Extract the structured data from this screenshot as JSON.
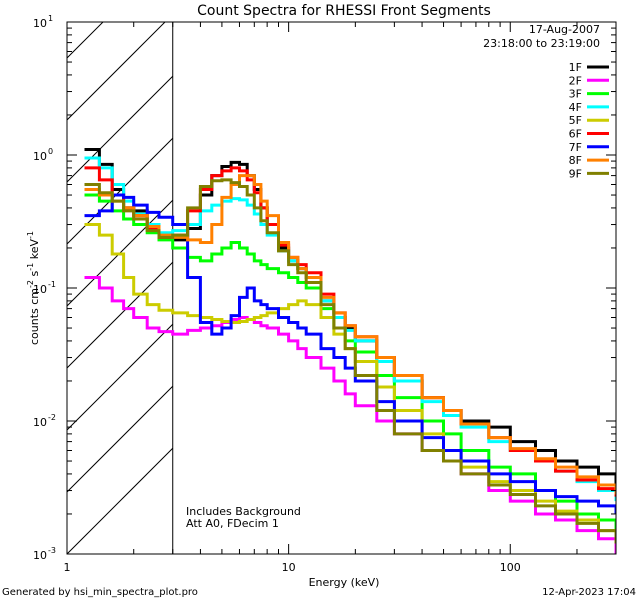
{
  "chart_data": {
    "type": "line",
    "title": "Count Spectra for RHESSI Front Segments",
    "xlabel": "Energy (keV)",
    "ylabel": "counts cm-2 s-1 keV-1",
    "x_scale": "log",
    "y_scale": "log",
    "xlim": [
      1,
      300
    ],
    "ylim": [
      0.001,
      10
    ],
    "x_ticks": [
      {
        "value": 1,
        "label": "1"
      },
      {
        "value": 10,
        "label": "10"
      },
      {
        "value": 100,
        "label": "100"
      }
    ],
    "y_ticks": [
      {
        "value": 10,
        "base": "10",
        "exp": "1"
      },
      {
        "value": 1,
        "base": "10",
        "exp": "0"
      },
      {
        "value": 0.1,
        "base": "10",
        "exp": "-1"
      },
      {
        "value": 0.01,
        "base": "10",
        "exp": "-2"
      },
      {
        "value": 0.001,
        "base": "10",
        "exp": "-3"
      }
    ],
    "date": "17-Aug-2007",
    "time_range": "23:18:00 to 23:19:00",
    "annotation_lines": [
      "Includes Background",
      "Att A0, FDecim 1"
    ],
    "hatched_region_xmax": 3,
    "footer_left": "Generated by hsi_min_spectra_plot.pro",
    "footer_right": "12-Apr-2023 17:04",
    "energy_keV": [
      1.2,
      1.4,
      1.6,
      1.8,
      2.0,
      2.3,
      2.6,
      3.0,
      3.5,
      4.0,
      4.5,
      5.0,
      5.5,
      6.0,
      6.5,
      7.0,
      7.5,
      8.0,
      9.0,
      10.0,
      11.0,
      12.0,
      14.0,
      16.0,
      18.0,
      20.0,
      25.0,
      30.0,
      40.0,
      50.0,
      60.0,
      80.0,
      100.0,
      130.0,
      160.0,
      200.0,
      250.0,
      300.0
    ],
    "series": [
      {
        "name": "1F",
        "color": "#000000",
        "values": [
          1.1,
          0.85,
          0.55,
          0.4,
          0.38,
          0.3,
          0.25,
          0.23,
          0.28,
          0.5,
          0.7,
          0.82,
          0.88,
          0.85,
          0.7,
          0.55,
          0.4,
          0.3,
          0.2,
          0.16,
          0.14,
          0.12,
          0.08,
          0.06,
          0.05,
          0.04,
          0.03,
          0.02,
          0.015,
          0.012,
          0.01,
          0.009,
          0.007,
          0.006,
          0.005,
          0.0045,
          0.004,
          0.003
        ]
      },
      {
        "name": "2F",
        "color": "#ff00ff",
        "values": [
          0.12,
          0.1,
          0.08,
          0.07,
          0.06,
          0.05,
          0.047,
          0.045,
          0.048,
          0.05,
          0.052,
          0.055,
          0.058,
          0.06,
          0.058,
          0.055,
          0.052,
          0.05,
          0.045,
          0.04,
          0.035,
          0.03,
          0.025,
          0.02,
          0.016,
          0.013,
          0.01,
          0.008,
          0.006,
          0.005,
          0.004,
          0.003,
          0.0025,
          0.002,
          0.0018,
          0.0015,
          0.0013,
          0.001
        ]
      },
      {
        "name": "3F",
        "color": "#00ff00",
        "values": [
          0.5,
          0.45,
          0.38,
          0.33,
          0.3,
          0.26,
          0.23,
          0.2,
          0.17,
          0.16,
          0.18,
          0.2,
          0.22,
          0.2,
          0.18,
          0.16,
          0.15,
          0.14,
          0.13,
          0.12,
          0.11,
          0.1,
          0.07,
          0.05,
          0.04,
          0.033,
          0.022,
          0.015,
          0.01,
          0.008,
          0.006,
          0.0045,
          0.004,
          0.003,
          0.0025,
          0.002,
          0.0018,
          0.0015
        ]
      },
      {
        "name": "4F",
        "color": "#00ffff",
        "values": [
          0.95,
          0.8,
          0.6,
          0.45,
          0.36,
          0.3,
          0.26,
          0.27,
          0.3,
          0.38,
          0.42,
          0.45,
          0.47,
          0.46,
          0.42,
          0.36,
          0.3,
          0.25,
          0.19,
          0.16,
          0.14,
          0.12,
          0.08,
          0.06,
          0.048,
          0.04,
          0.028,
          0.02,
          0.014,
          0.011,
          0.009,
          0.007,
          0.006,
          0.005,
          0.0042,
          0.0035,
          0.003,
          0.0025
        ]
      },
      {
        "name": "5F",
        "color": "#cccc00",
        "values": [
          0.3,
          0.25,
          0.18,
          0.12,
          0.09,
          0.075,
          0.068,
          0.065,
          0.062,
          0.06,
          0.058,
          0.056,
          0.055,
          0.056,
          0.058,
          0.06,
          0.062,
          0.065,
          0.07,
          0.075,
          0.08,
          0.075,
          0.06,
          0.045,
          0.035,
          0.028,
          0.018,
          0.012,
          0.008,
          0.006,
          0.0045,
          0.0035,
          0.003,
          0.0025,
          0.0021,
          0.0018,
          0.0015,
          0.0013
        ]
      },
      {
        "name": "6F",
        "color": "#ff0000",
        "values": [
          0.8,
          0.65,
          0.5,
          0.4,
          0.35,
          0.28,
          0.24,
          0.25,
          0.38,
          0.55,
          0.7,
          0.76,
          0.8,
          0.76,
          0.65,
          0.52,
          0.4,
          0.3,
          0.21,
          0.17,
          0.15,
          0.13,
          0.09,
          0.065,
          0.052,
          0.043,
          0.03,
          0.022,
          0.015,
          0.012,
          0.0095,
          0.0075,
          0.006,
          0.005,
          0.0042,
          0.0036,
          0.0031,
          0.0027
        ]
      },
      {
        "name": "7F",
        "color": "#0000ff",
        "values": [
          0.35,
          0.38,
          0.5,
          0.48,
          0.42,
          0.37,
          0.34,
          0.3,
          0.12,
          0.055,
          0.045,
          0.05,
          0.062,
          0.085,
          0.1,
          0.08,
          0.075,
          0.07,
          0.06,
          0.055,
          0.05,
          0.045,
          0.035,
          0.03,
          0.025,
          0.02,
          0.014,
          0.01,
          0.0075,
          0.006,
          0.005,
          0.004,
          0.0035,
          0.003,
          0.0027,
          0.0025,
          0.0023,
          0.002
        ]
      },
      {
        "name": "8F",
        "color": "#ff8000",
        "values": [
          0.55,
          0.5,
          0.45,
          0.4,
          0.35,
          0.29,
          0.25,
          0.24,
          0.23,
          0.22,
          0.3,
          0.48,
          0.6,
          0.7,
          0.7,
          0.6,
          0.45,
          0.35,
          0.22,
          0.17,
          0.14,
          0.12,
          0.085,
          0.065,
          0.052,
          0.043,
          0.03,
          0.022,
          0.015,
          0.012,
          0.0095,
          0.0075,
          0.0062,
          0.0052,
          0.0045,
          0.0038,
          0.0033,
          0.0028
        ]
      },
      {
        "name": "9F",
        "color": "#808000",
        "values": [
          0.6,
          0.52,
          0.45,
          0.38,
          0.33,
          0.27,
          0.24,
          0.25,
          0.4,
          0.58,
          0.64,
          0.65,
          0.62,
          0.58,
          0.5,
          0.4,
          0.32,
          0.26,
          0.19,
          0.15,
          0.13,
          0.11,
          0.075,
          0.05,
          0.035,
          0.022,
          0.012,
          0.008,
          0.006,
          0.005,
          0.004,
          0.0033,
          0.0028,
          0.0023,
          0.002,
          0.0017,
          0.0015,
          0.0012
        ]
      }
    ]
  }
}
